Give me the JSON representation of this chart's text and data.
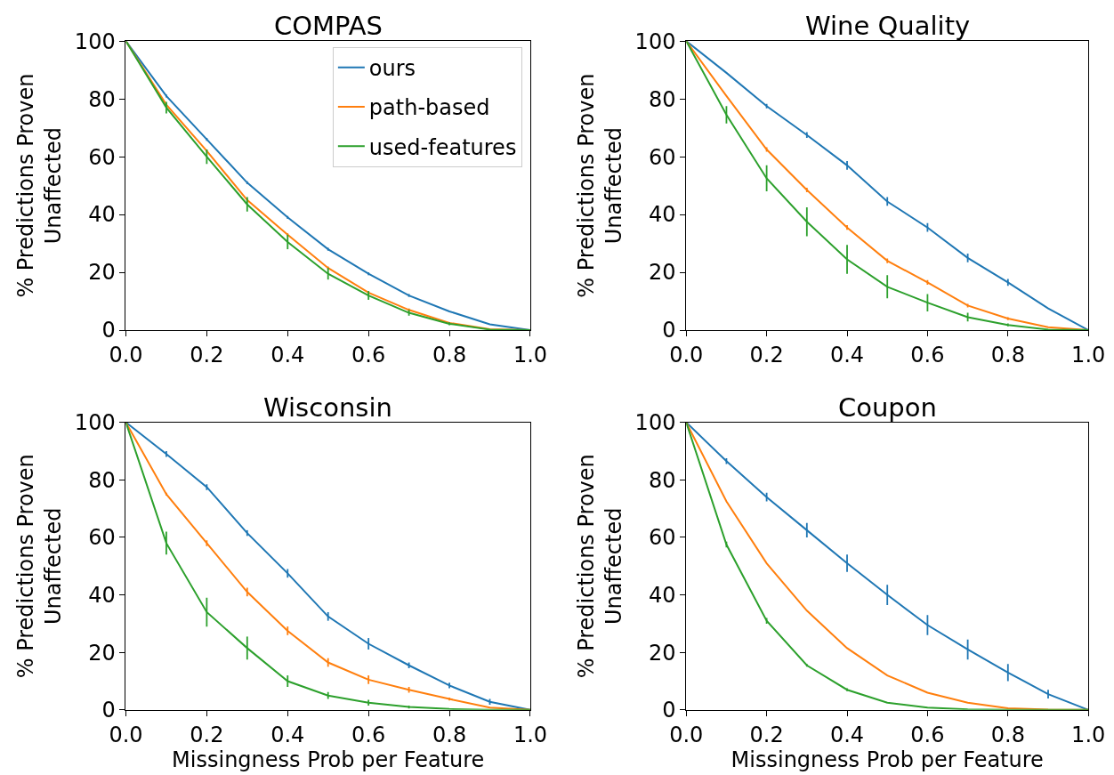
{
  "chart_data": [
    {
      "type": "line",
      "title": "COMPAS",
      "ylabel": "% Predictions Proven\nUnaffected",
      "x": [
        0,
        0.1,
        0.2,
        0.3,
        0.4,
        0.5,
        0.6,
        0.7,
        0.8,
        0.9,
        1.0
      ],
      "xlim": [
        0,
        1
      ],
      "ylim": [
        0,
        100
      ],
      "xticks": [
        {
          "value": 0,
          "label": "0.0"
        },
        {
          "value": 0.2,
          "label": "0.2"
        },
        {
          "value": 0.4,
          "label": "0.4"
        },
        {
          "value": 0.6,
          "label": "0.6"
        },
        {
          "value": 0.8,
          "label": "0.8"
        },
        {
          "value": 1,
          "label": "1.0"
        }
      ],
      "yticks": [
        0,
        20,
        40,
        60,
        80,
        100
      ],
      "grid": false,
      "legend": "top right",
      "marker": "none",
      "line_style": "solid",
      "series": [
        {
          "name": "ours",
          "color": "#1f77b4",
          "values": [
            100,
            81,
            66,
            51,
            39,
            28,
            19.5,
            12,
            6.5,
            2,
            0
          ],
          "errors": [
            null,
            0.5,
            0.5,
            0.5,
            0.5,
            0.5,
            0.5,
            0.5,
            null,
            null,
            null
          ]
        },
        {
          "name": "path-based",
          "color": "#ff7f0e",
          "values": [
            100,
            78,
            62,
            45,
            33,
            21.5,
            13,
            7,
            2.5,
            0.3,
            0
          ],
          "errors": [
            null,
            0.5,
            0.5,
            0.5,
            0.5,
            0.5,
            0.5,
            0.5,
            null,
            null,
            null
          ]
        },
        {
          "name": "used-features",
          "color": "#2ca02c",
          "values": [
            100,
            77,
            60,
            43.5,
            30.5,
            19.5,
            12,
            6,
            2.2,
            0.2,
            0
          ],
          "errors": [
            null,
            2,
            2.5,
            2.5,
            2.5,
            2,
            1.5,
            1,
            0.5,
            null,
            null
          ]
        }
      ]
    },
    {
      "type": "line",
      "title": "Wine Quality",
      "ylabel": "% Predictions Proven\nUnaffected",
      "x": [
        0,
        0.1,
        0.2,
        0.3,
        0.4,
        0.5,
        0.6,
        0.7,
        0.8,
        0.9,
        1.0
      ],
      "xlim": [
        0,
        1
      ],
      "ylim": [
        0,
        100
      ],
      "xticks": [
        {
          "value": 0,
          "label": "0.0"
        },
        {
          "value": 0.2,
          "label": "0.2"
        },
        {
          "value": 0.4,
          "label": "0.4"
        },
        {
          "value": 0.6,
          "label": "0.6"
        },
        {
          "value": 0.8,
          "label": "0.8"
        },
        {
          "value": 1,
          "label": "1.0"
        }
      ],
      "yticks": [
        0,
        20,
        40,
        60,
        80,
        100
      ],
      "grid": false,
      "marker": "none",
      "line_style": "solid",
      "series": [
        {
          "color": "#1f77b4",
          "values": [
            100,
            89,
            77.5,
            67.5,
            57,
            44.5,
            35.5,
            25,
            16.5,
            7.5,
            0
          ],
          "errors": [
            null,
            null,
            0.8,
            1,
            1.5,
            1.5,
            1.5,
            1.5,
            1.2,
            null,
            null
          ]
        },
        {
          "color": "#ff7f0e",
          "values": [
            100,
            81,
            62.5,
            48.5,
            35.5,
            24,
            16.5,
            8.5,
            4,
            1,
            0
          ],
          "errors": [
            null,
            null,
            0.8,
            0.8,
            0.8,
            0.8,
            0.8,
            0.6,
            0.5,
            null,
            null
          ]
        },
        {
          "color": "#2ca02c",
          "values": [
            100,
            74.5,
            52.5,
            37.5,
            24.5,
            15,
            9.5,
            4.5,
            1.8,
            0.2,
            0
          ],
          "errors": [
            null,
            3,
            4.5,
            5,
            5,
            4,
            3,
            1.5,
            0.5,
            null,
            null
          ]
        }
      ]
    },
    {
      "type": "line",
      "title": "Wisconsin",
      "xlabel": "Missingness Prob per Feature",
      "ylabel": "% Predictions Proven\nUnaffected",
      "x": [
        0,
        0.1,
        0.2,
        0.3,
        0.4,
        0.5,
        0.6,
        0.7,
        0.8,
        0.9,
        1.0
      ],
      "xlim": [
        0,
        1
      ],
      "ylim": [
        0,
        100
      ],
      "xticks": [
        {
          "value": 0,
          "label": "0.0"
        },
        {
          "value": 0.2,
          "label": "0.2"
        },
        {
          "value": 0.4,
          "label": "0.4"
        },
        {
          "value": 0.6,
          "label": "0.6"
        },
        {
          "value": 0.8,
          "label": "0.8"
        },
        {
          "value": 1,
          "label": "1.0"
        }
      ],
      "yticks": [
        0,
        20,
        40,
        60,
        80,
        100
      ],
      "grid": false,
      "marker": "none",
      "line_style": "solid",
      "series": [
        {
          "color": "#1f77b4",
          "values": [
            100,
            89,
            77.5,
            61.5,
            47.5,
            32.5,
            23,
            15.5,
            8.5,
            2.8,
            0
          ],
          "errors": [
            null,
            1,
            1,
            1,
            1.5,
            1.5,
            2,
            1,
            1,
            1,
            null
          ]
        },
        {
          "color": "#ff7f0e",
          "values": [
            100,
            75,
            58,
            41,
            27.5,
            16.5,
            10.5,
            7,
            3.8,
            0.8,
            0
          ],
          "errors": [
            null,
            0.5,
            1,
            1.5,
            1.5,
            1.5,
            1.5,
            1,
            0.5,
            null,
            null
          ]
        },
        {
          "color": "#2ca02c",
          "values": [
            100,
            58,
            34,
            21.5,
            10,
            5,
            2.5,
            1,
            0.3,
            0,
            0
          ],
          "errors": [
            null,
            4,
            5,
            4,
            2,
            1.2,
            1,
            0.5,
            null,
            null,
            null
          ]
        }
      ]
    },
    {
      "type": "line",
      "title": "Coupon",
      "xlabel": "Missingness Prob per Feature",
      "ylabel": "% Predictions Proven\nUnaffected",
      "x": [
        0,
        0.1,
        0.2,
        0.3,
        0.4,
        0.5,
        0.6,
        0.7,
        0.8,
        0.9,
        1.0
      ],
      "xlim": [
        0,
        1
      ],
      "ylim": [
        0,
        100
      ],
      "xticks": [
        {
          "value": 0,
          "label": "0.0"
        },
        {
          "value": 0.2,
          "label": "0.2"
        },
        {
          "value": 0.4,
          "label": "0.4"
        },
        {
          "value": 0.6,
          "label": "0.6"
        },
        {
          "value": 0.8,
          "label": "0.8"
        },
        {
          "value": 1,
          "label": "1.0"
        }
      ],
      "yticks": [
        0,
        20,
        40,
        60,
        80,
        100
      ],
      "grid": false,
      "marker": "none",
      "line_style": "solid",
      "series": [
        {
          "color": "#1f77b4",
          "values": [
            100,
            86.5,
            74,
            62.5,
            51,
            40,
            29.5,
            21,
            13,
            5.5,
            0
          ],
          "errors": [
            null,
            1,
            1.5,
            2.5,
            3,
            3.5,
            3.5,
            3.5,
            3,
            1.5,
            null
          ]
        },
        {
          "color": "#ff7f0e",
          "values": [
            100,
            72.5,
            51,
            34.5,
            21.5,
            12,
            6,
            2.5,
            0.6,
            0.1,
            0
          ]
        },
        {
          "color": "#2ca02c",
          "values": [
            100,
            57.5,
            31,
            15.5,
            7,
            2.5,
            0.8,
            0.2,
            0,
            0,
            0
          ],
          "errors": [
            null,
            1,
            1,
            0.5,
            0.5,
            null,
            null,
            null,
            null,
            null,
            null
          ]
        }
      ]
    }
  ]
}
